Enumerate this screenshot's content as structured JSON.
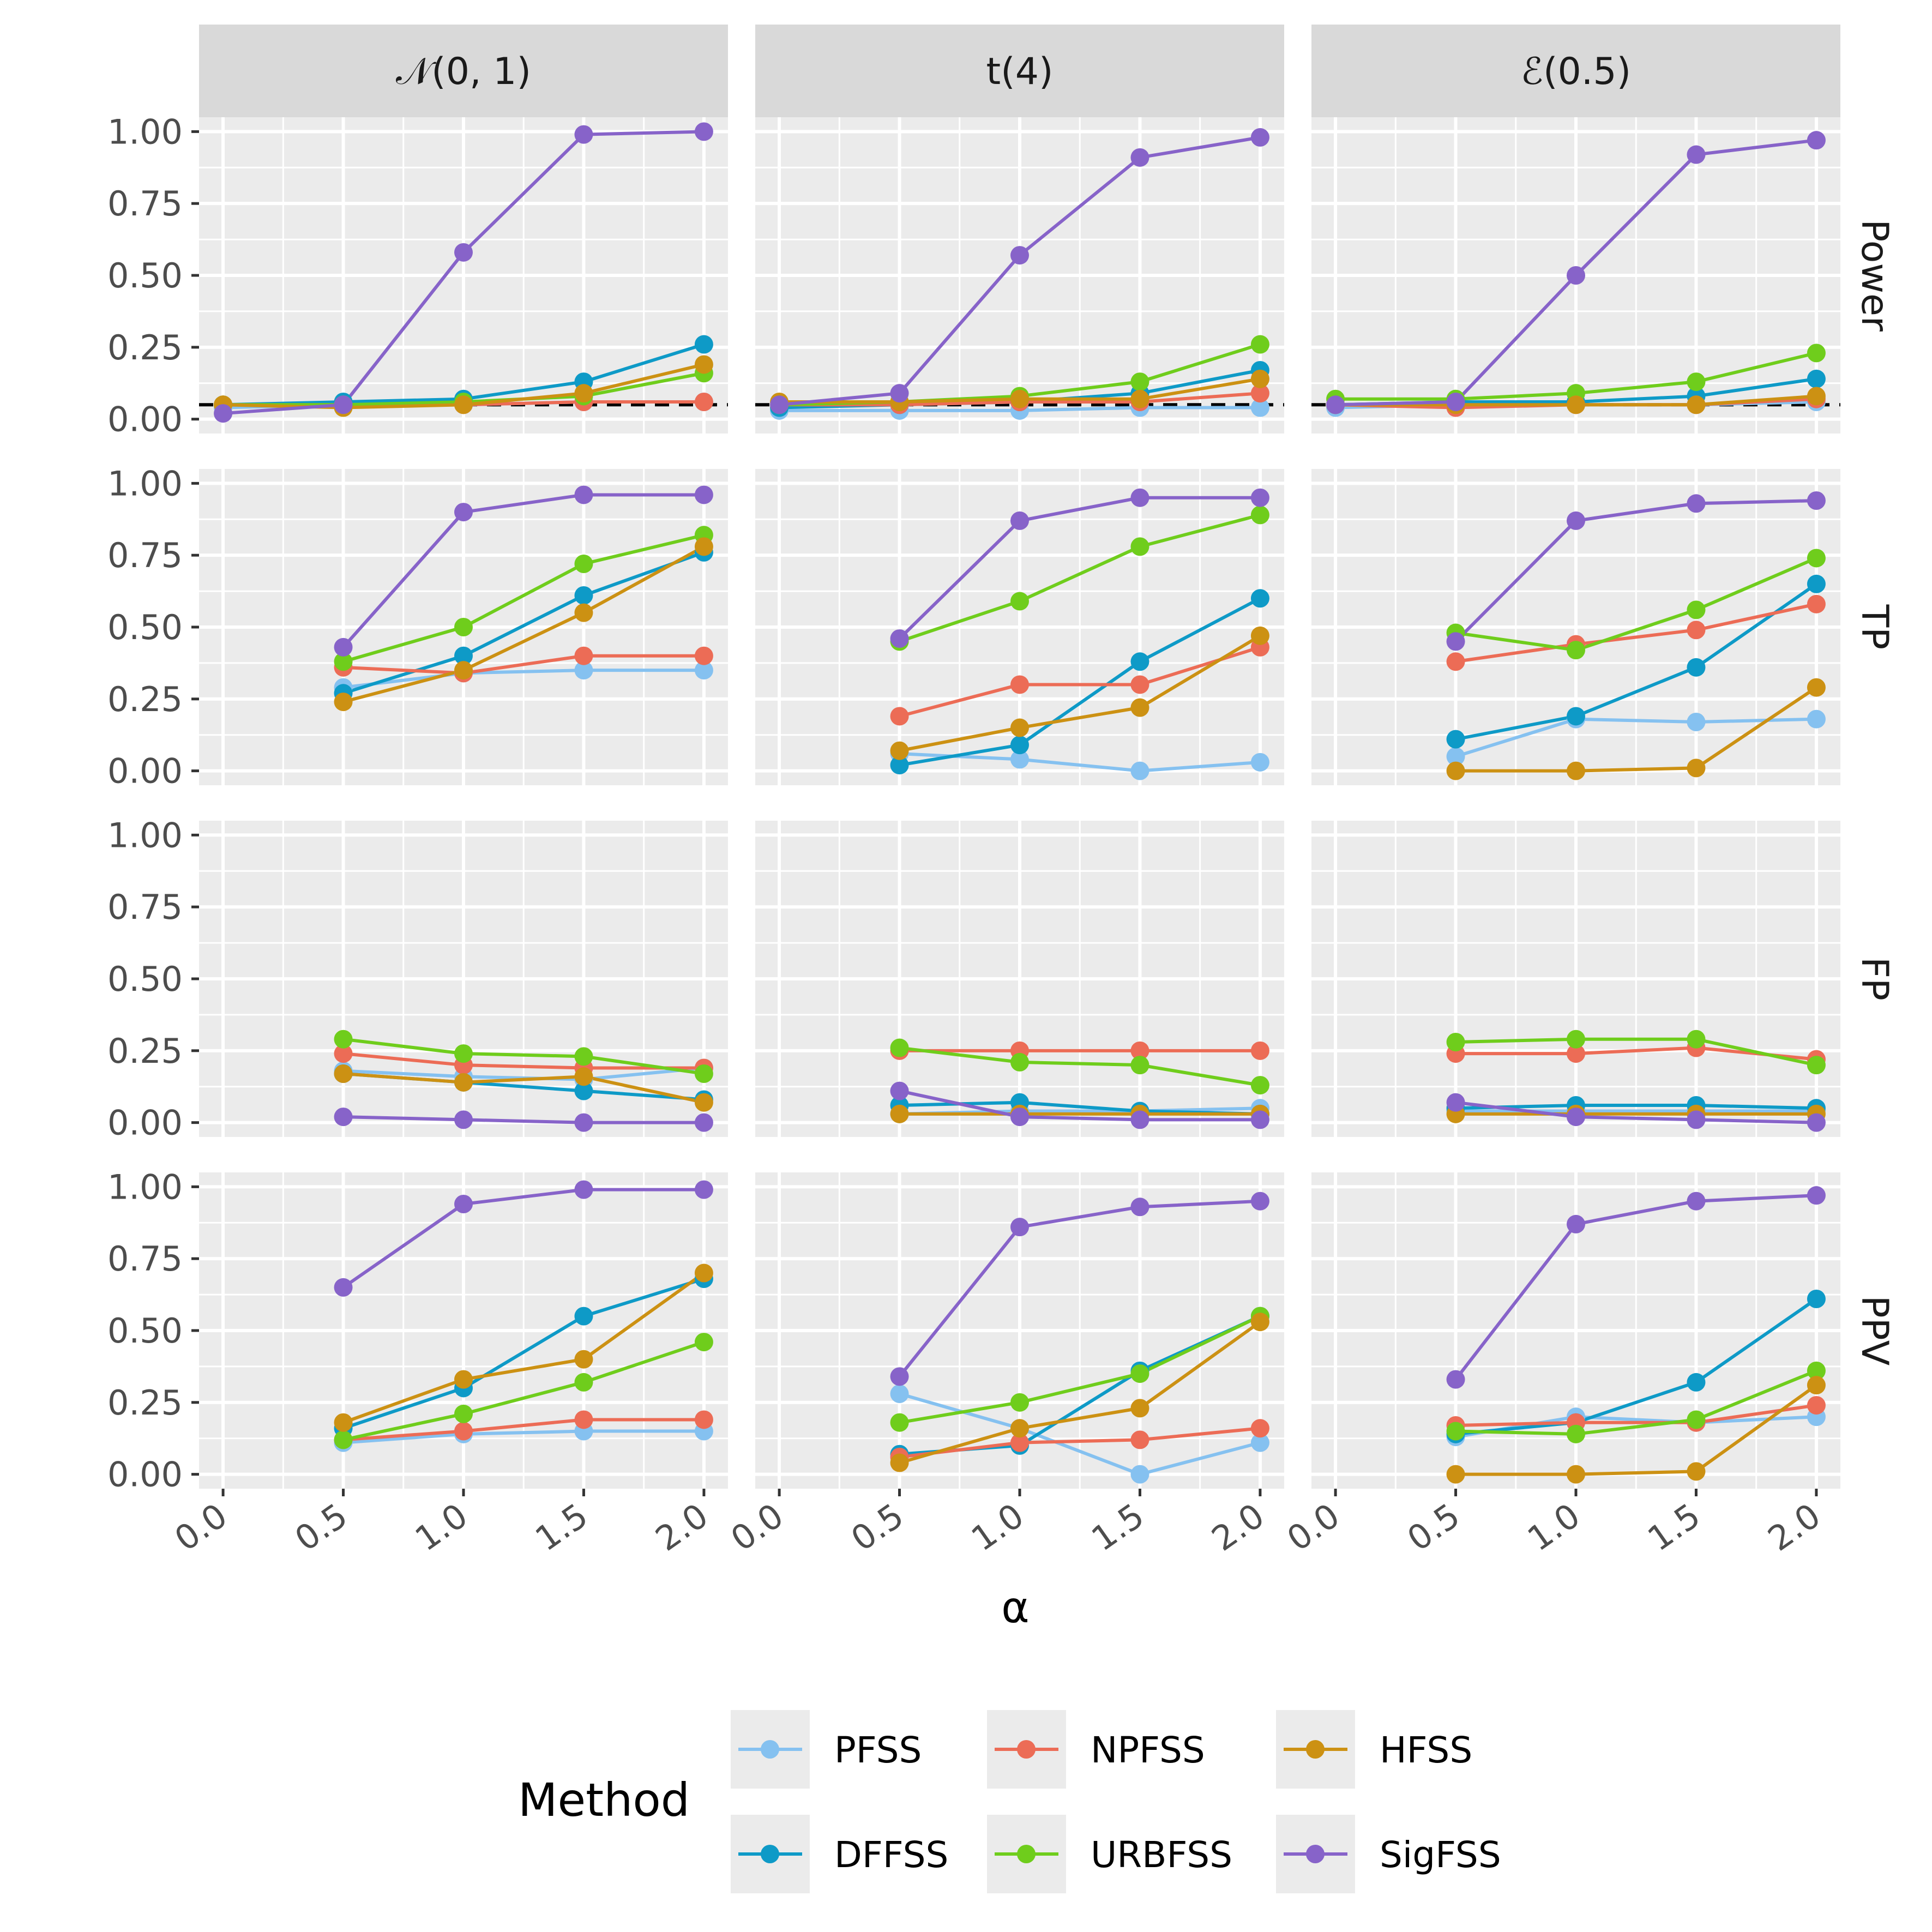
{
  "chart_data": {
    "type": "line",
    "facet_columns": [
      "𝒩(0, 1)",
      "t(4)",
      "ℰ(0.5)"
    ],
    "facet_rows": [
      "Power",
      "TP",
      "FP",
      "PPV"
    ],
    "x": [
      0.0,
      0.5,
      1.0,
      1.5,
      2.0
    ],
    "x_tick_labels": [
      "0.0",
      "0.5",
      "1.0",
      "1.5",
      "2.0"
    ],
    "xlim": [
      -0.1,
      2.1
    ],
    "xlabel": "α",
    "ylabel": "",
    "ylim": [
      -0.05,
      1.05
    ],
    "y_ticks": [
      0,
      0.25,
      0.5,
      0.75,
      1.0
    ],
    "y_tick_labels": [
      "0.00",
      "0.25",
      "0.50",
      "0.75",
      "1.00"
    ],
    "reference_line": {
      "row": "Power",
      "y": 0.05,
      "style": "dashed",
      "color": "#000000"
    },
    "grid": true,
    "legend": {
      "title": "Method",
      "position": "bottom",
      "entries": [
        {
          "name": "PFSS",
          "color": "#85C1F0"
        },
        {
          "name": "DFFSS",
          "color": "#0E9AC7"
        },
        {
          "name": "NPFSS",
          "color": "#EC6C56"
        },
        {
          "name": "URBFSS",
          "color": "#6FCD1C"
        },
        {
          "name": "HFSS",
          "color": "#CC9113"
        },
        {
          "name": "SigFSS",
          "color": "#8763C9"
        }
      ]
    },
    "series": [
      {
        "name": "PFSS",
        "color": "#85C1F0",
        "values": {
          "Power": [
            [
              0.04,
              0.05,
              0.05,
              0.06,
              0.06
            ],
            [
              0.03,
              0.03,
              0.03,
              0.04,
              0.04
            ],
            [
              0.04,
              0.05,
              0.05,
              0.05,
              0.06
            ]
          ],
          "TP": [
            [
              null,
              0.29,
              0.34,
              0.35,
              0.35
            ],
            [
              null,
              0.06,
              0.04,
              0.0,
              0.03
            ],
            [
              null,
              0.05,
              0.18,
              0.17,
              0.18
            ]
          ],
          "FP": [
            [
              null,
              0.18,
              0.16,
              0.15,
              0.19
            ],
            [
              null,
              0.03,
              0.04,
              0.04,
              0.05
            ],
            [
              null,
              0.04,
              0.04,
              0.04,
              0.04
            ]
          ],
          "PPV": [
            [
              null,
              0.11,
              0.14,
              0.15,
              0.15
            ],
            [
              null,
              0.28,
              0.16,
              0.0,
              0.11
            ],
            [
              null,
              0.13,
              0.2,
              0.18,
              0.2
            ]
          ]
        }
      },
      {
        "name": "DFFSS",
        "color": "#0E9AC7",
        "values": {
          "Power": [
            [
              0.05,
              0.06,
              0.07,
              0.13,
              0.26
            ],
            [
              0.04,
              0.05,
              0.06,
              0.09,
              0.17
            ],
            [
              0.05,
              0.06,
              0.06,
              0.08,
              0.14
            ]
          ],
          "TP": [
            [
              null,
              0.27,
              0.4,
              0.61,
              0.76
            ],
            [
              null,
              0.02,
              0.09,
              0.38,
              0.6
            ],
            [
              null,
              0.11,
              0.19,
              0.36,
              0.65
            ]
          ],
          "FP": [
            [
              null,
              0.17,
              0.14,
              0.11,
              0.08
            ],
            [
              null,
              0.06,
              0.07,
              0.04,
              0.03
            ],
            [
              null,
              0.05,
              0.06,
              0.06,
              0.05
            ]
          ],
          "PPV": [
            [
              null,
              0.16,
              0.3,
              0.55,
              0.68
            ],
            [
              null,
              0.07,
              0.1,
              0.36,
              0.55
            ],
            [
              null,
              0.14,
              0.18,
              0.32,
              0.61
            ]
          ]
        }
      },
      {
        "name": "NPFSS",
        "color": "#EC6C56",
        "values": {
          "Power": [
            [
              0.05,
              0.05,
              0.05,
              0.06,
              0.06
            ],
            [
              0.05,
              0.05,
              0.06,
              0.06,
              0.09
            ],
            [
              0.05,
              0.04,
              0.05,
              0.05,
              0.07
            ]
          ],
          "TP": [
            [
              null,
              0.36,
              0.34,
              0.4,
              0.4
            ],
            [
              null,
              0.19,
              0.3,
              0.3,
              0.43
            ],
            [
              null,
              0.38,
              0.44,
              0.49,
              0.58
            ]
          ],
          "FP": [
            [
              null,
              0.24,
              0.2,
              0.19,
              0.19
            ],
            [
              null,
              0.25,
              0.25,
              0.25,
              0.25
            ],
            [
              null,
              0.24,
              0.24,
              0.26,
              0.22
            ]
          ],
          "PPV": [
            [
              null,
              0.12,
              0.15,
              0.19,
              0.19
            ],
            [
              null,
              0.06,
              0.11,
              0.12,
              0.16
            ],
            [
              null,
              0.17,
              0.18,
              0.18,
              0.24
            ]
          ]
        }
      },
      {
        "name": "URBFSS",
        "color": "#6FCD1C",
        "values": {
          "Power": [
            [
              0.05,
              0.05,
              0.06,
              0.08,
              0.16
            ],
            [
              0.05,
              0.06,
              0.08,
              0.13,
              0.26
            ],
            [
              0.07,
              0.07,
              0.09,
              0.13,
              0.23
            ]
          ],
          "TP": [
            [
              null,
              0.38,
              0.5,
              0.72,
              0.82
            ],
            [
              null,
              0.45,
              0.59,
              0.78,
              0.89
            ],
            [
              null,
              0.48,
              0.42,
              0.56,
              0.74
            ]
          ],
          "FP": [
            [
              null,
              0.29,
              0.24,
              0.23,
              0.17
            ],
            [
              null,
              0.26,
              0.21,
              0.2,
              0.13
            ],
            [
              null,
              0.28,
              0.29,
              0.29,
              0.2
            ]
          ],
          "PPV": [
            [
              null,
              0.12,
              0.21,
              0.32,
              0.46
            ],
            [
              null,
              0.18,
              0.25,
              0.35,
              0.55
            ],
            [
              null,
              0.15,
              0.14,
              0.19,
              0.36
            ]
          ]
        }
      },
      {
        "name": "HFSS",
        "color": "#CC9113",
        "values": {
          "Power": [
            [
              0.05,
              0.04,
              0.05,
              0.09,
              0.19
            ],
            [
              0.06,
              0.06,
              0.07,
              0.07,
              0.14
            ],
            [
              0.05,
              0.05,
              0.05,
              0.05,
              0.08
            ]
          ],
          "TP": [
            [
              null,
              0.24,
              0.35,
              0.55,
              0.78
            ],
            [
              null,
              0.07,
              0.15,
              0.22,
              0.47
            ],
            [
              null,
              0.0,
              0.0,
              0.01,
              0.29
            ]
          ],
          "FP": [
            [
              null,
              0.17,
              0.14,
              0.16,
              0.07
            ],
            [
              null,
              0.03,
              0.03,
              0.03,
              0.03
            ],
            [
              null,
              0.03,
              0.03,
              0.03,
              0.03
            ]
          ],
          "PPV": [
            [
              null,
              0.18,
              0.33,
              0.4,
              0.7
            ],
            [
              null,
              0.04,
              0.16,
              0.23,
              0.53
            ],
            [
              null,
              0.0,
              0.0,
              0.01,
              0.31
            ]
          ]
        }
      },
      {
        "name": "SigFSS",
        "color": "#8763C9",
        "values": {
          "Power": [
            [
              0.02,
              0.05,
              0.58,
              0.99,
              1.0
            ],
            [
              0.05,
              0.09,
              0.57,
              0.91,
              0.98
            ],
            [
              0.05,
              0.06,
              0.5,
              0.92,
              0.97
            ]
          ],
          "TP": [
            [
              null,
              0.43,
              0.9,
              0.96,
              0.96
            ],
            [
              null,
              0.46,
              0.87,
              0.95,
              0.95
            ],
            [
              null,
              0.45,
              0.87,
              0.93,
              0.94
            ]
          ],
          "FP": [
            [
              null,
              0.02,
              0.01,
              0.0,
              0.0
            ],
            [
              null,
              0.11,
              0.02,
              0.01,
              0.01
            ],
            [
              null,
              0.07,
              0.02,
              0.01,
              0.0
            ]
          ],
          "PPV": [
            [
              null,
              0.65,
              0.94,
              0.99,
              0.99
            ],
            [
              null,
              0.34,
              0.86,
              0.93,
              0.95
            ],
            [
              null,
              0.33,
              0.87,
              0.95,
              0.97
            ]
          ]
        }
      }
    ]
  }
}
